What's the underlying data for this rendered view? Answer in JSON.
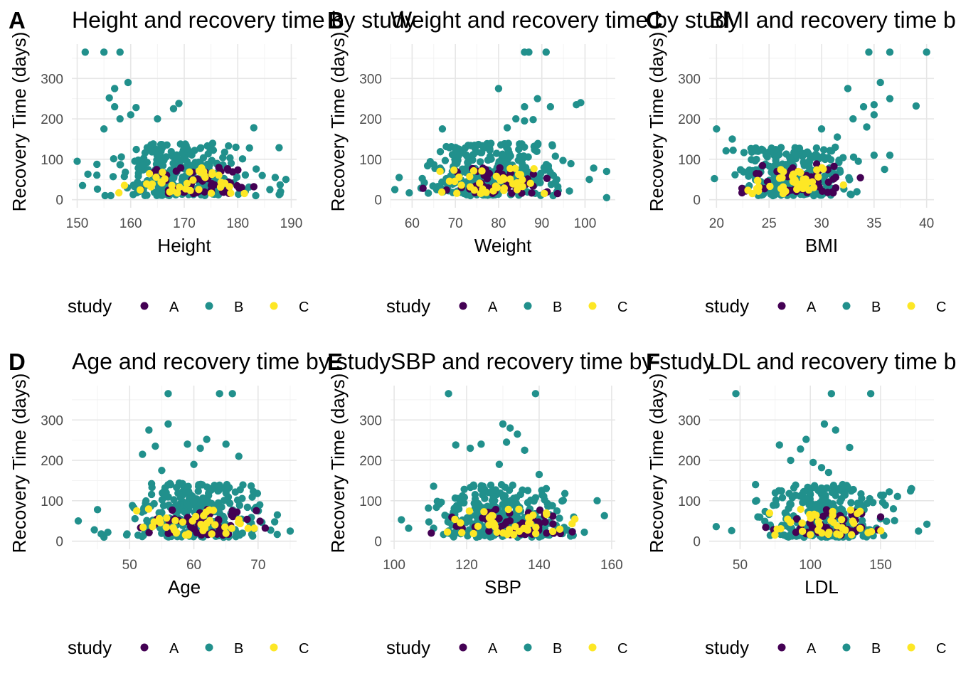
{
  "colors": {
    "A": "#440154",
    "B": "#21908C",
    "C": "#FDE725",
    "grid_major": "#e6e6e6",
    "grid_minor": "#f2f2f2"
  },
  "legend": {
    "title": "study",
    "keys": [
      "A",
      "B",
      "C"
    ]
  },
  "chart_data": [
    {
      "tag": "A",
      "type": "scatter",
      "title": "Height and recovery time by study",
      "xlabel": "Height",
      "ylabel": "Recovery Time (days)",
      "xlim": [
        149,
        191
      ],
      "ylim": [
        -20,
        385
      ],
      "xticks": [
        150,
        160,
        170,
        180,
        190
      ],
      "yticks": [
        0,
        100,
        200,
        300
      ],
      "legend": "bottom",
      "grid": true,
      "series": [
        {
          "name": "A",
          "n": 50,
          "x_range": [
            158,
            188
          ],
          "y_range": [
            15,
            80
          ]
        },
        {
          "name": "B",
          "n": 280,
          "x_range": [
            151,
            189
          ],
          "y_range": [
            10,
            140
          ]
        },
        {
          "name": "C",
          "n": 40,
          "x_range": [
            152,
            189
          ],
          "y_range": [
            15,
            80
          ]
        }
      ],
      "outliers": [
        [
          151.5,
          365
        ],
        [
          155,
          365
        ],
        [
          158,
          365
        ],
        [
          157,
          275
        ],
        [
          159.5,
          290
        ],
        [
          161,
          228
        ],
        [
          156,
          252
        ],
        [
          157,
          230
        ],
        [
          160,
          210
        ],
        [
          165,
          200
        ],
        [
          168,
          225
        ],
        [
          169,
          238
        ],
        [
          158,
          200
        ],
        [
          155,
          175
        ],
        [
          183,
          178
        ],
        [
          150,
          95
        ],
        [
          151,
          35
        ],
        [
          186,
          25
        ],
        [
          188,
          20
        ],
        [
          152,
          63
        ],
        [
          187,
          55
        ],
        [
          189,
          50
        ]
      ]
    },
    {
      "tag": "B",
      "type": "scatter",
      "title": "Weight and recovery time by study",
      "xlabel": "Weight",
      "ylabel": "Recovery Time (days)",
      "xlim": [
        55,
        107
      ],
      "ylim": [
        -20,
        385
      ],
      "xticks": [
        60,
        70,
        80,
        90,
        100
      ],
      "yticks": [
        0,
        100,
        200,
        300
      ],
      "legend": "bottom",
      "grid": true,
      "series": [
        {
          "name": "A",
          "n": 50,
          "x_range": [
            60,
            100
          ],
          "y_range": [
            15,
            80
          ]
        },
        {
          "name": "B",
          "n": 280,
          "x_range": [
            57,
            100
          ],
          "y_range": [
            10,
            140
          ]
        },
        {
          "name": "C",
          "n": 40,
          "x_range": [
            58,
            98
          ],
          "y_range": [
            15,
            80
          ]
        }
      ],
      "outliers": [
        [
          86,
          365
        ],
        [
          87,
          365
        ],
        [
          91,
          365
        ],
        [
          80,
          275
        ],
        [
          89,
          250
        ],
        [
          86,
          230
        ],
        [
          92,
          230
        ],
        [
          98,
          235
        ],
        [
          99,
          240
        ],
        [
          84,
          200
        ],
        [
          86,
          195
        ],
        [
          88,
          198
        ],
        [
          82,
          178
        ],
        [
          67,
          175
        ],
        [
          105,
          5
        ],
        [
          56,
          25
        ],
        [
          57,
          55
        ],
        [
          105,
          70
        ],
        [
          101,
          50
        ],
        [
          102,
          78
        ]
      ]
    },
    {
      "tag": "C",
      "type": "scatter",
      "title": "BMI and recovery time by study",
      "xlabel": "BMI",
      "ylabel": "Recovery Time (days)",
      "xlim": [
        19.3,
        40.7
      ],
      "ylim": [
        -20,
        385
      ],
      "xticks": [
        20,
        25,
        30,
        35,
        40
      ],
      "yticks": [
        0,
        100,
        200,
        300
      ],
      "legend": "bottom",
      "grid": true,
      "series": [
        {
          "name": "A",
          "n": 50,
          "x_range": [
            20,
            36
          ],
          "y_range": [
            15,
            90
          ]
        },
        {
          "name": "B",
          "n": 280,
          "x_range": [
            20,
            34.5
          ],
          "y_range": [
            10,
            130
          ]
        },
        {
          "name": "C",
          "n": 40,
          "x_range": [
            20,
            34
          ],
          "y_range": [
            15,
            80
          ]
        }
      ],
      "outliers": [
        [
          34.5,
          365
        ],
        [
          36.5,
          365
        ],
        [
          40,
          365
        ],
        [
          36.5,
          250
        ],
        [
          39,
          232
        ],
        [
          35,
          235
        ],
        [
          32.5,
          275
        ],
        [
          34,
          230
        ],
        [
          35,
          210
        ],
        [
          33,
          200
        ],
        [
          34.3,
          180
        ],
        [
          30,
          175
        ],
        [
          31.5,
          155
        ],
        [
          35.6,
          290
        ],
        [
          20,
          175
        ],
        [
          21.5,
          150
        ],
        [
          36,
          75
        ],
        [
          19.8,
          52
        ],
        [
          33.5,
          95
        ],
        [
          35,
          110
        ],
        [
          36.5,
          110
        ]
      ]
    },
    {
      "tag": "D",
      "type": "scatter",
      "title": "Age and recovery time by study",
      "xlabel": "Age",
      "ylabel": "Recovery Time (days)",
      "xlim": [
        41,
        76
      ],
      "ylim": [
        -20,
        385
      ],
      "xticks": [
        50,
        60,
        70
      ],
      "yticks": [
        0,
        100,
        200,
        300
      ],
      "legend": "bottom",
      "grid": true,
      "series": [
        {
          "name": "A",
          "n": 50,
          "x_range": [
            48,
            74
          ],
          "y_range": [
            15,
            80
          ]
        },
        {
          "name": "B",
          "n": 280,
          "x_range": [
            45,
            75
          ],
          "y_range": [
            10,
            145
          ]
        },
        {
          "name": "C",
          "n": 40,
          "x_range": [
            45,
            74
          ],
          "y_range": [
            15,
            80
          ]
        }
      ],
      "outliers": [
        [
          56,
          365
        ],
        [
          64,
          365
        ],
        [
          66,
          365
        ],
        [
          53,
          275
        ],
        [
          56,
          290
        ],
        [
          52,
          215
        ],
        [
          54,
          235
        ],
        [
          59,
          240
        ],
        [
          61,
          230
        ],
        [
          62,
          252
        ],
        [
          65,
          240
        ],
        [
          67,
          210
        ],
        [
          60,
          190
        ],
        [
          55,
          175
        ],
        [
          42,
          50
        ],
        [
          44.5,
          28
        ],
        [
          46,
          10
        ],
        [
          45,
          78
        ],
        [
          75,
          25
        ],
        [
          73,
          65
        ]
      ]
    },
    {
      "tag": "E",
      "type": "scatter",
      "title": "SBP and recovery time by study",
      "xlabel": "SBP",
      "ylabel": "Recovery Time (days)",
      "xlim": [
        99,
        161
      ],
      "ylim": [
        -20,
        385
      ],
      "xticks": [
        100,
        120,
        140,
        160
      ],
      "yticks": [
        0,
        100,
        200,
        300
      ],
      "legend": "bottom",
      "grid": true,
      "series": [
        {
          "name": "A",
          "n": 50,
          "x_range": [
            108,
            155
          ],
          "y_range": [
            15,
            80
          ]
        },
        {
          "name": "B",
          "n": 280,
          "x_range": [
            103,
            156
          ],
          "y_range": [
            10,
            140
          ]
        },
        {
          "name": "C",
          "n": 40,
          "x_range": [
            104,
            158
          ],
          "y_range": [
            15,
            80
          ]
        }
      ],
      "outliers": [
        [
          115,
          365
        ],
        [
          139,
          365
        ],
        [
          130,
          290
        ],
        [
          132,
          280
        ],
        [
          134,
          265
        ],
        [
          136,
          225
        ],
        [
          131,
          245
        ],
        [
          117,
          238
        ],
        [
          121,
          230
        ],
        [
          124,
          240
        ],
        [
          129,
          190
        ],
        [
          140,
          165
        ],
        [
          102,
          53
        ],
        [
          158,
          63
        ],
        [
          156,
          100
        ],
        [
          104,
          32
        ]
      ]
    },
    {
      "tag": "F",
      "type": "scatter",
      "title": "LDL and recovery time by study",
      "xlabel": "LDL",
      "ylabel": "Recovery Time (days)",
      "xlim": [
        28,
        188
      ],
      "ylim": [
        -20,
        385
      ],
      "xticks": [
        50,
        100,
        150
      ],
      "yticks": [
        0,
        100,
        200,
        300
      ],
      "legend": "bottom",
      "grid": true,
      "series": [
        {
          "name": "A",
          "n": 50,
          "x_range": [
            60,
            168
          ],
          "y_range": [
            15,
            80
          ]
        },
        {
          "name": "B",
          "n": 280,
          "x_range": [
            45,
            175
          ],
          "y_range": [
            10,
            140
          ]
        },
        {
          "name": "C",
          "n": 40,
          "x_range": [
            45,
            183
          ],
          "y_range": [
            15,
            80
          ]
        }
      ],
      "outliers": [
        [
          47,
          365
        ],
        [
          115,
          365
        ],
        [
          143,
          365
        ],
        [
          110,
          290
        ],
        [
          118,
          275
        ],
        [
          128,
          232
        ],
        [
          78,
          238
        ],
        [
          97,
          252
        ],
        [
          93,
          228
        ],
        [
          86,
          200
        ],
        [
          102,
          195
        ],
        [
          108,
          182
        ],
        [
          113,
          170
        ],
        [
          123,
          140
        ],
        [
          33,
          36
        ],
        [
          44,
          26
        ],
        [
          183,
          42
        ],
        [
          177,
          25
        ],
        [
          172,
          130
        ],
        [
          61,
          140
        ]
      ]
    }
  ]
}
